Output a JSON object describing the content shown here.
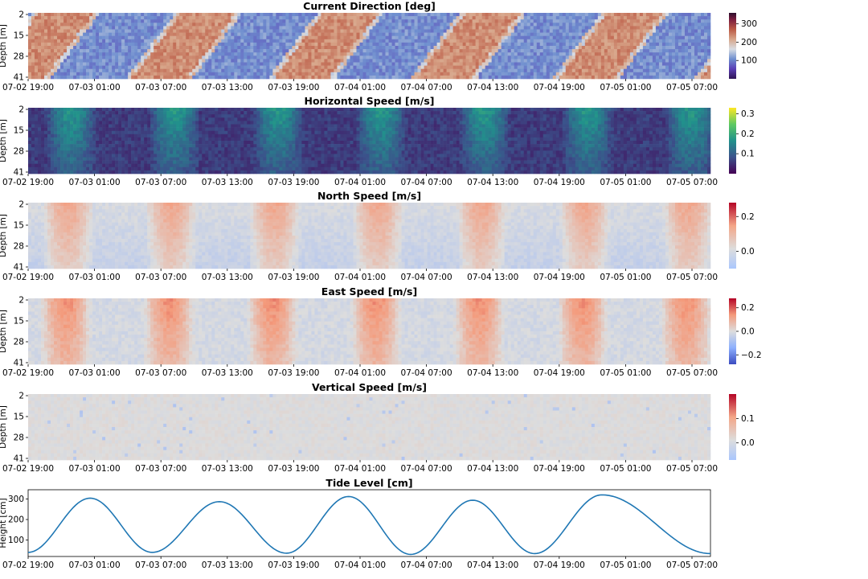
{
  "x_ticks": [
    "07-02 19:00",
    "07-03 01:00",
    "07-03 07:00",
    "07-03 13:00",
    "07-03 19:00",
    "07-04 01:00",
    "07-04 07:00",
    "07-04 13:00",
    "07-04 19:00",
    "07-05 01:00",
    "07-05 07:00"
  ],
  "chart_data": [
    {
      "type": "heatmap",
      "title": "Current Direction [deg]",
      "ylabel": "Depth [m]",
      "y_ticks": [
        "2",
        "15",
        "28",
        "41"
      ],
      "colormap": "twilight_shifted",
      "colorbar_ticks": [
        "300",
        "200",
        "100"
      ],
      "colorbar_range": [
        0,
        360
      ]
    },
    {
      "type": "heatmap",
      "title": "Horizontal Speed [m/s]",
      "ylabel": "Depth [m]",
      "y_ticks": [
        "2",
        "15",
        "28",
        "41"
      ],
      "colormap": "viridis",
      "colorbar_ticks": [
        "0.3",
        "0.2",
        "0.1"
      ],
      "colorbar_range": [
        0,
        0.33
      ]
    },
    {
      "type": "heatmap",
      "title": "North Speed [m/s]",
      "ylabel": "Depth [m]",
      "y_ticks": [
        "2",
        "15",
        "28",
        "41"
      ],
      "colormap": "coolwarm",
      "colorbar_ticks": [
        "0.2",
        "0.0"
      ],
      "colorbar_range": [
        -0.1,
        0.28
      ]
    },
    {
      "type": "heatmap",
      "title": "East Speed [m/s]",
      "ylabel": "Depth [m]",
      "y_ticks": [
        "2",
        "15",
        "28",
        "41"
      ],
      "colormap": "coolwarm",
      "colorbar_ticks": [
        "0.2",
        "0.0",
        "−0.2"
      ],
      "colorbar_range": [
        -0.28,
        0.28
      ]
    },
    {
      "type": "heatmap",
      "title": "Vertical Speed [m/s]",
      "ylabel": "Depth [m]",
      "y_ticks": [
        "2",
        "15",
        "28",
        "41"
      ],
      "colormap": "coolwarm",
      "colorbar_ticks": [
        "0.1",
        "0.0"
      ],
      "colorbar_range": [
        -0.07,
        0.2
      ]
    },
    {
      "type": "line",
      "title": "Tide Level [cm]",
      "ylabel": "Height [cm]",
      "y_ticks": [
        "300",
        "200",
        "100"
      ],
      "ylim": [
        20,
        345
      ],
      "xlim": [
        "07-02 19:00",
        "07-05 13:00"
      ],
      "line_color": "#1f77b4",
      "series": [
        {
          "x": [
            "07-02 19:00",
            "07-03 01:00",
            "07-03 07:00",
            "07-03 13:30",
            "07-03 20:00",
            "07-04 02:00",
            "07-04 08:00",
            "07-04 14:00",
            "07-04 20:00",
            "07-05 02:30",
            "07-05 13:00"
          ],
          "values": [
            40,
            304,
            40,
            287,
            36,
            312,
            30,
            294,
            34,
            320,
            34
          ]
        }
      ]
    }
  ]
}
